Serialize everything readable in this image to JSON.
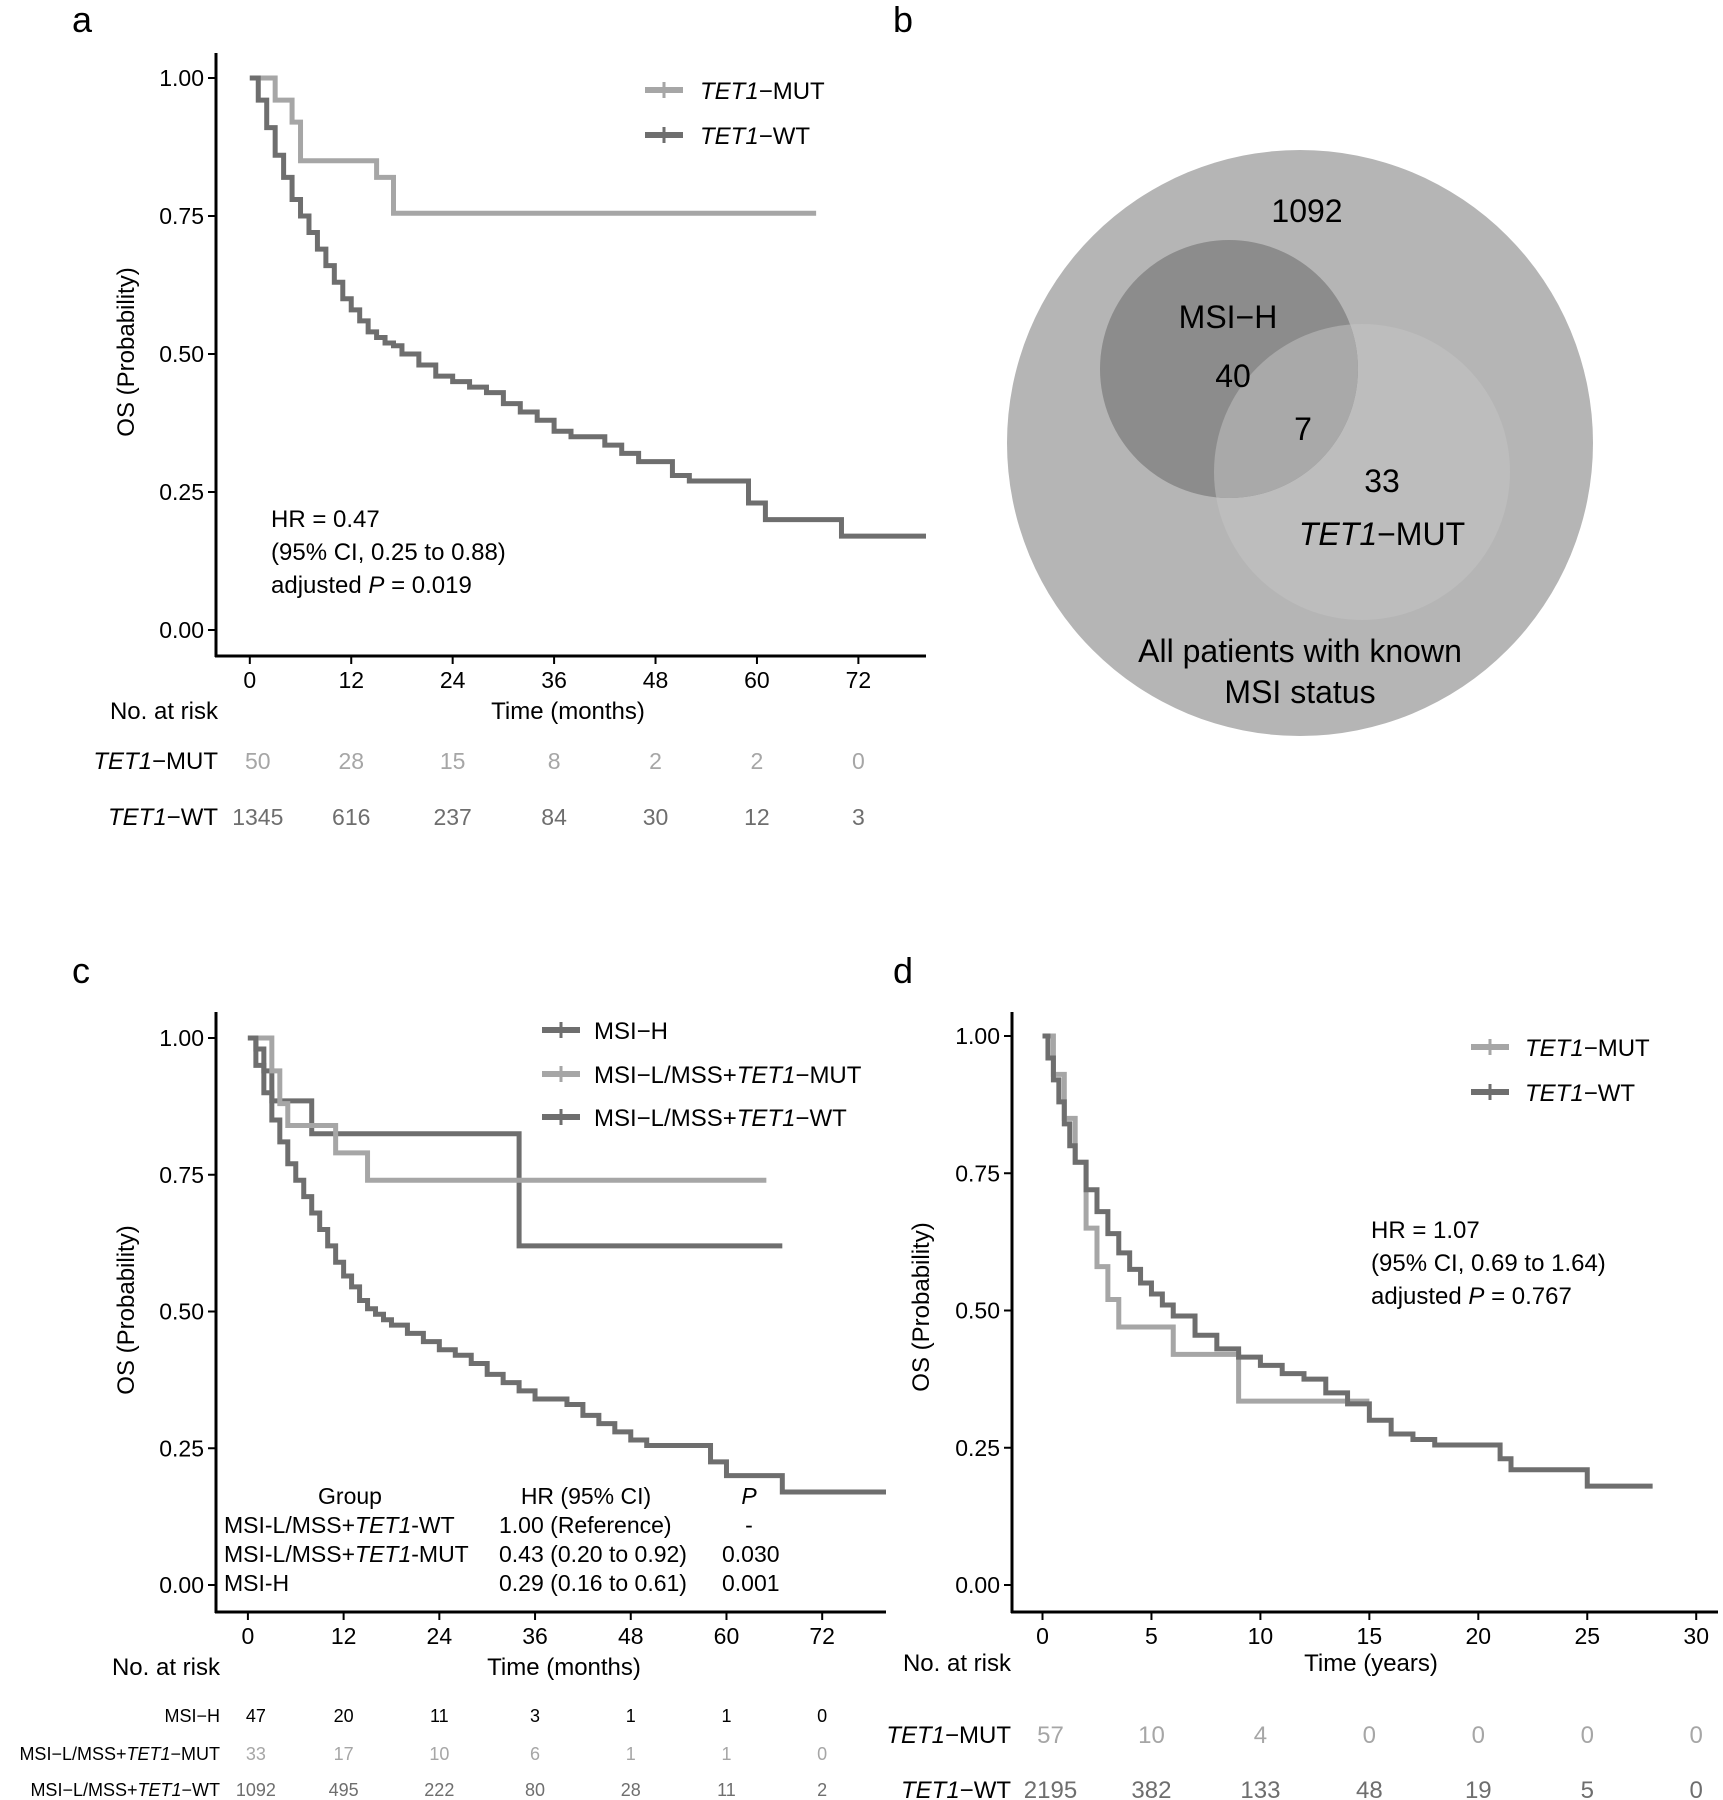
{
  "panels": {
    "a": "a",
    "b": "b",
    "c": "c",
    "d": "d"
  },
  "colors": {
    "mut": "#a6a6a6",
    "wt": "#6e6e6e",
    "msih": "#6e6e6e",
    "axis": "#000000"
  },
  "chart_data": [
    {
      "id": "a",
      "type": "line",
      "ylabel": "OS (Probability)",
      "xlabel": "Time (months)",
      "xlim": [
        -4,
        80
      ],
      "ylim": [
        0,
        1
      ],
      "xticks": [
        0,
        12,
        24,
        36,
        48,
        60,
        72
      ],
      "yticks": [
        "0.00",
        "0.25",
        "0.50",
        "0.75",
        "1.00"
      ],
      "legend_position": "top-right",
      "series": [
        {
          "name_prefix": "TET1",
          "name_suffix": "−MUT",
          "color": "#a6a6a6",
          "x": [
            0,
            1.5,
            3,
            5,
            6,
            10,
            15,
            17,
            67
          ],
          "y": [
            1.0,
            1.0,
            0.96,
            0.92,
            0.85,
            0.85,
            0.82,
            0.755,
            0.755
          ]
        },
        {
          "name_prefix": "TET1",
          "name_suffix": "−WT",
          "color": "#6e6e6e",
          "x": [
            0,
            1,
            2,
            3,
            4,
            5,
            6,
            7,
            8,
            9,
            10,
            11,
            12,
            13,
            14,
            15,
            16,
            17,
            18,
            20,
            22,
            24,
            26,
            28,
            30,
            32,
            34,
            36,
            38,
            40,
            42,
            44,
            46,
            48,
            50,
            52,
            56,
            58,
            59,
            61,
            67,
            70,
            80
          ],
          "y": [
            1.0,
            0.96,
            0.91,
            0.86,
            0.82,
            0.78,
            0.75,
            0.72,
            0.69,
            0.66,
            0.63,
            0.6,
            0.58,
            0.56,
            0.54,
            0.53,
            0.52,
            0.515,
            0.5,
            0.48,
            0.46,
            0.45,
            0.44,
            0.43,
            0.41,
            0.395,
            0.38,
            0.36,
            0.35,
            0.35,
            0.335,
            0.32,
            0.305,
            0.305,
            0.28,
            0.27,
            0.27,
            0.27,
            0.23,
            0.2,
            0.2,
            0.17,
            0.17
          ]
        }
      ],
      "annotation": {
        "line1": "HR = 0.47",
        "line2": "(95% CI, 0.25 to 0.88)",
        "line3_prefix": "adjusted ",
        "line3_p": "P",
        "line3_suffix": " = 0.019"
      },
      "risk_table": {
        "title": "No. at risk",
        "rows": [
          {
            "label_prefix": "TET1",
            "label_suffix": "−MUT",
            "color": "#a6a6a6",
            "values": [
              "50",
              "28",
              "15",
              "8",
              "2",
              "2",
              "0"
            ]
          },
          {
            "label_prefix": "TET1",
            "label_suffix": "−WT",
            "color": "#6e6e6e",
            "values": [
              "1345",
              "616",
              "237",
              "84",
              "30",
              "12",
              "3"
            ]
          }
        ]
      }
    },
    {
      "id": "b",
      "type": "venn",
      "outer": {
        "count": "1092",
        "label_line1": "All patients with known",
        "label_line2": "MSI status"
      },
      "msih": {
        "label": "MSI−H",
        "count": "40"
      },
      "overlap": {
        "count": "7"
      },
      "tet1": {
        "count": "33",
        "label_prefix": "TET1",
        "label_suffix": "−MUT"
      }
    },
    {
      "id": "c",
      "type": "line",
      "ylabel": "OS (Probability)",
      "xlabel": "Time (months)",
      "xlim": [
        -4,
        80
      ],
      "ylim": [
        0,
        1
      ],
      "xticks": [
        0,
        12,
        24,
        36,
        48,
        60,
        72
      ],
      "yticks": [
        "0.00",
        "0.25",
        "0.50",
        "0.75",
        "1.00"
      ],
      "legend_position": "top-right",
      "series": [
        {
          "name_prefix": "MSI−H",
          "name_suffix": "",
          "color": "#6e6e6e",
          "x": [
            0,
            1,
            2,
            3,
            8,
            34,
            67
          ],
          "y": [
            1.0,
            0.98,
            0.94,
            0.885,
            0.825,
            0.62,
            0.62
          ]
        },
        {
          "name_prefix": "MSI−L/MSS+TET1",
          "name_suffix": "−MUT",
          "color": "#a6a6a6",
          "x": [
            0,
            2,
            3,
            4,
            5,
            11,
            15,
            65
          ],
          "y": [
            1.0,
            1.0,
            0.94,
            0.88,
            0.84,
            0.79,
            0.74,
            0.74
          ]
        },
        {
          "name_prefix": "MSI−L/MSS+TET1",
          "name_suffix": "−WT",
          "color": "#6e6e6e",
          "x": [
            0,
            1,
            2,
            3,
            4,
            5,
            6,
            7,
            8,
            9,
            10,
            11,
            12,
            13,
            14,
            15,
            16,
            17,
            18,
            20,
            22,
            24,
            26,
            28,
            30,
            32,
            34,
            36,
            38,
            40,
            42,
            44,
            46,
            48,
            50,
            52,
            58,
            60,
            67,
            80
          ],
          "y": [
            1.0,
            0.95,
            0.9,
            0.85,
            0.81,
            0.77,
            0.74,
            0.71,
            0.68,
            0.65,
            0.62,
            0.59,
            0.565,
            0.545,
            0.52,
            0.505,
            0.495,
            0.485,
            0.475,
            0.46,
            0.445,
            0.43,
            0.42,
            0.405,
            0.385,
            0.37,
            0.355,
            0.34,
            0.34,
            0.33,
            0.31,
            0.295,
            0.28,
            0.265,
            0.255,
            0.255,
            0.225,
            0.2,
            0.17,
            0.17
          ]
        }
      ],
      "hr_table": {
        "headers": {
          "group": "Group",
          "hr": "HR (95% CI)",
          "p": "P"
        },
        "rows": [
          {
            "group_prefix": "MSI-L/MSS+",
            "group_italic": "TET1",
            "group_suffix": "-WT",
            "hr": "1.00 (Reference)",
            "p": "-"
          },
          {
            "group_prefix": "MSI-L/MSS+",
            "group_italic": "TET1",
            "group_suffix": "-MUT",
            "hr": "0.43 (0.20 to 0.92)",
            "p": "0.030"
          },
          {
            "group_prefix": "MSI-H",
            "group_italic": "",
            "group_suffix": "",
            "hr": "0.29 (0.16 to 0.61)",
            "p": "0.001"
          }
        ]
      },
      "risk_table": {
        "title": "No. at risk",
        "rows": [
          {
            "label_prefix": "MSI−H",
            "label_italic": "",
            "label_suffix": "",
            "color": "#000000",
            "values": [
              "47",
              "20",
              "11",
              "3",
              "1",
              "1",
              "0"
            ]
          },
          {
            "label_prefix": "MSI−L/MSS+",
            "label_italic": "TET1",
            "label_suffix": "−MUT",
            "color": "#a6a6a6",
            "values": [
              "33",
              "17",
              "10",
              "6",
              "1",
              "1",
              "0"
            ]
          },
          {
            "label_prefix": "MSI−L/MSS+",
            "label_italic": "TET1",
            "label_suffix": "−WT",
            "color": "#6e6e6e",
            "values": [
              "1092",
              "495",
              "222",
              "80",
              "28",
              "11",
              "2"
            ]
          }
        ]
      }
    },
    {
      "id": "d",
      "type": "line",
      "ylabel": "OS (Probability)",
      "xlabel": "Time (years)",
      "xlim": [
        -1.4,
        31
      ],
      "ylim": [
        0,
        1
      ],
      "xticks": [
        0,
        5,
        10,
        15,
        20,
        25,
        30
      ],
      "yticks": [
        "0.00",
        "0.25",
        "0.50",
        "0.75",
        "1.00"
      ],
      "legend_position": "top-right",
      "series": [
        {
          "name_prefix": "TET1",
          "name_suffix": "−MUT",
          "color": "#a6a6a6",
          "x": [
            0,
            0.5,
            1,
            1.5,
            2,
            2.5,
            3,
            3.5,
            6,
            9,
            15
          ],
          "y": [
            1.0,
            0.93,
            0.85,
            0.77,
            0.65,
            0.58,
            0.52,
            0.47,
            0.42,
            0.335,
            0.335
          ]
        },
        {
          "name_prefix": "TET1",
          "name_suffix": "−WT",
          "color": "#6e6e6e",
          "x": [
            0,
            0.25,
            0.5,
            0.75,
            1,
            1.25,
            1.5,
            2,
            2.5,
            3,
            3.5,
            4,
            4.5,
            5,
            5.5,
            6,
            7,
            8,
            9,
            10,
            11,
            12,
            13,
            14,
            15,
            16,
            17,
            18,
            21,
            21.5,
            25,
            28
          ],
          "y": [
            1.0,
            0.96,
            0.92,
            0.88,
            0.84,
            0.8,
            0.77,
            0.72,
            0.68,
            0.64,
            0.605,
            0.575,
            0.55,
            0.53,
            0.51,
            0.49,
            0.455,
            0.43,
            0.415,
            0.4,
            0.385,
            0.375,
            0.35,
            0.33,
            0.3,
            0.275,
            0.265,
            0.255,
            0.23,
            0.21,
            0.18,
            0.18
          ]
        }
      ],
      "annotation": {
        "line1": "HR = 1.07",
        "line2": "(95% CI, 0.69 to 1.64)",
        "line3_prefix": "adjusted ",
        "line3_p": "P",
        "line3_suffix": " = 0.767"
      },
      "risk_table": {
        "title": "No. at risk",
        "rows": [
          {
            "label_prefix": "TET1",
            "label_suffix": "−MUT",
            "color": "#a6a6a6",
            "values": [
              "57",
              "10",
              "4",
              "0",
              "0",
              "0",
              "0"
            ]
          },
          {
            "label_prefix": "TET1",
            "label_suffix": "−WT",
            "color": "#6e6e6e",
            "values": [
              "2195",
              "382",
              "133",
              "48",
              "19",
              "5",
              "0"
            ]
          }
        ]
      }
    }
  ]
}
